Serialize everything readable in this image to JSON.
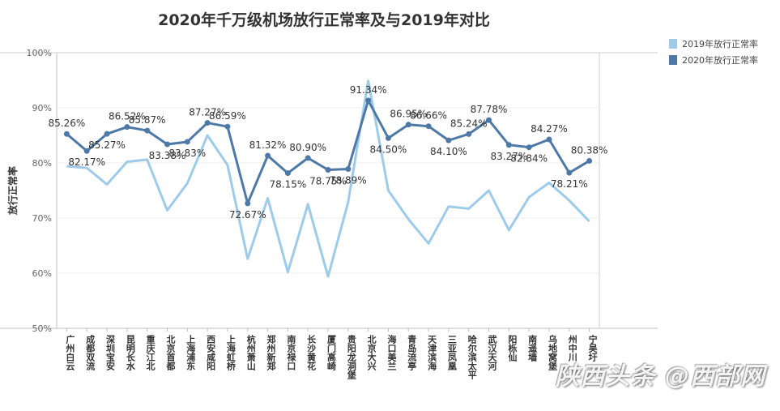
{
  "chart_data": {
    "type": "line",
    "title": "2020年千万级机场放行正常率及与2019年对比",
    "xlabel": "",
    "ylabel": "放行正常率",
    "ylim": [
      50,
      100
    ],
    "yticks": [
      "50%",
      "60%",
      "70%",
      "80%",
      "90%",
      "100%"
    ],
    "grid": true,
    "legend_position": "top-right",
    "categories": [
      "广州白云",
      "成都双流",
      "深圳宝安",
      "昆明长水",
      "重庆江北",
      "北京首都",
      "上海浦东",
      "西安咸阳",
      "上海虹桥",
      "杭州萧山",
      "郑州新郑",
      "南京禄口",
      "长沙黄花",
      "厦门高崎",
      "贵阳龙洞堡",
      "北京大兴",
      "海口美兰",
      "青岛流亭",
      "天津滨海",
      "三亚凤凰",
      "哈尔滨太平",
      "武汉天河",
      "阳栎仙",
      "南遥墙",
      "乌地窝堡",
      "州中川",
      "宁吴圩"
    ],
    "series": [
      {
        "name": "2019年放行正常率",
        "color": "#9dcbe9",
        "values": [
          79.4,
          79.1,
          76.1,
          80.2,
          80.6,
          71.4,
          76.3,
          85.0,
          79.6,
          62.6,
          73.6,
          60.2,
          72.5,
          59.4,
          72.9,
          94.9,
          75.0,
          69.8,
          65.4,
          72.1,
          71.7,
          75.0,
          67.8,
          73.8,
          76.4,
          73.2,
          69.4
        ]
      },
      {
        "name": "2020年放行正常率",
        "color": "#4e79a7",
        "values": [
          85.26,
          82.17,
          85.27,
          86.52,
          85.87,
          83.38,
          83.83,
          87.27,
          86.59,
          72.67,
          81.32,
          78.15,
          80.9,
          78.75,
          78.89,
          91.34,
          84.5,
          86.95,
          86.66,
          84.1,
          85.24,
          87.78,
          83.27,
          82.84,
          84.27,
          78.21,
          80.38
        ],
        "labels": [
          "85.26%",
          "82.17%",
          "85.27%",
          "86.52%",
          "85.87%",
          "83.38%",
          "83.83%",
          "87.27%",
          "86.59%",
          "72.67%",
          "81.32%",
          "78.15%",
          "80.90%",
          "78.75%",
          "78.89%",
          "91.34%",
          "84.50%",
          "86.95%",
          "86.66%",
          "84.10%",
          "85.24%",
          "87.78%",
          "83.27%",
          "82.84%",
          "84.27%",
          "78.21%",
          "80.38%"
        ]
      }
    ]
  },
  "watermark": "陕西头条 @西部网"
}
